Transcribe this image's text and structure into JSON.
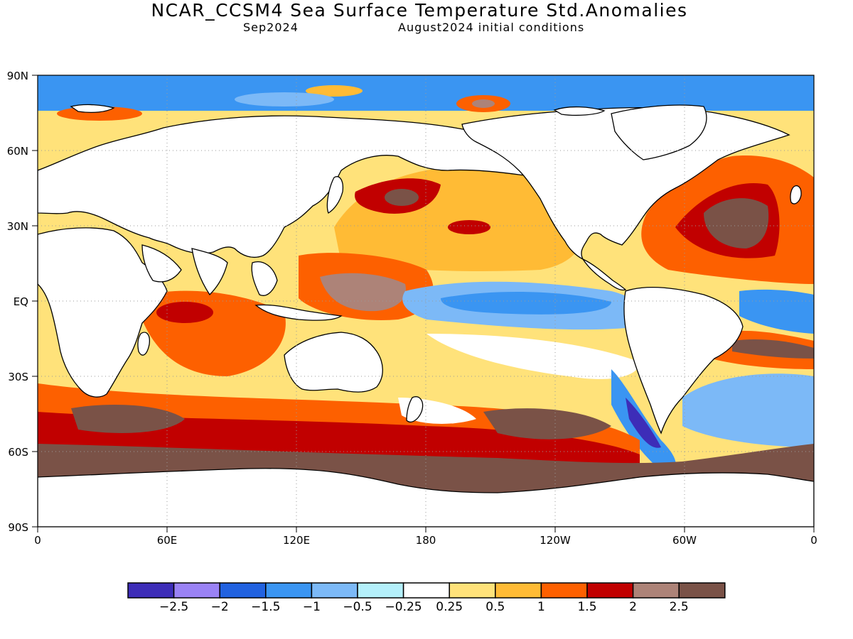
{
  "title": "NCAR_CCSM4 Sea Surface Temperature Std.Anomalies",
  "subtitle_left": "Sep2024",
  "subtitle_right": "August2024 initial conditions",
  "lat_labels": [
    "90N",
    "60N",
    "30N",
    "EQ",
    "30S",
    "60S",
    "90S"
  ],
  "lon_labels": [
    "0",
    "60E",
    "120E",
    "180",
    "120W",
    "60W",
    "0"
  ],
  "colorbar": {
    "colors": [
      "#3d2db8",
      "#9a82f5",
      "#2162e0",
      "#3a95f2",
      "#7cb9f7",
      "#b4f0fb",
      "#ffffff",
      "#ffe27a",
      "#ffbb35",
      "#fd6000",
      "#c10000",
      "#ad8378",
      "#7a5247"
    ],
    "tick_labels": [
      "-2.5",
      "-2",
      "-1.5",
      "-1",
      "-0.5",
      "-0.25",
      "0.25",
      "0.5",
      "1",
      "1.5",
      "2",
      "2.5"
    ]
  }
}
